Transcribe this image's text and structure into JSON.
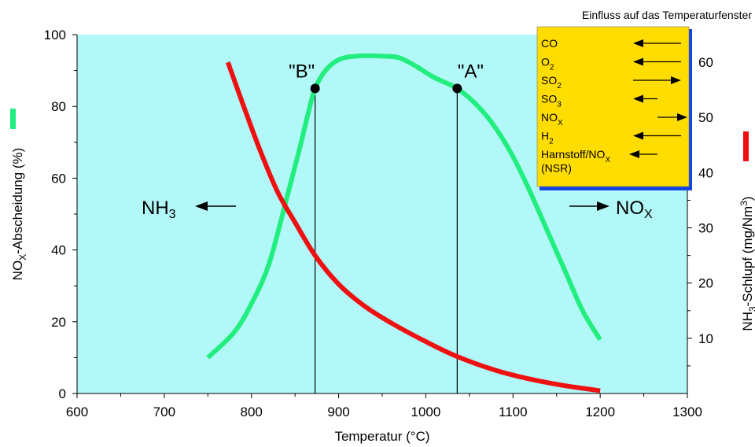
{
  "chart_data": {
    "type": "line",
    "xlabel": "Temperatur (°C)",
    "ylabel_left": {
      "base": "NO",
      "sub": "X",
      "rest": "-Abscheidung (%)"
    },
    "ylabel_right": {
      "base": "NH",
      "sub": "3",
      "rest": "-Schlupf (mg/Nm",
      "sup": "3",
      "end": ")"
    },
    "xlim": [
      600,
      1300
    ],
    "ylim_left": [
      0,
      100
    ],
    "ylim_right": [
      0,
      65
    ],
    "x_ticks": [
      600,
      700,
      800,
      900,
      1000,
      1100,
      1200,
      1300
    ],
    "y_ticks_left": [
      0,
      20,
      40,
      60,
      80,
      100
    ],
    "y_ticks_right": [
      10,
      20,
      30,
      40,
      50,
      60
    ],
    "background_color": "#b3f8f8",
    "series": [
      {
        "color": "#22ee7f",
        "axis": "left",
        "points": [
          [
            750,
            10
          ],
          [
            780,
            17
          ],
          [
            800,
            25
          ],
          [
            820,
            36
          ],
          [
            840,
            54
          ],
          [
            855,
            68
          ],
          [
            865,
            78
          ],
          [
            873,
            85
          ],
          [
            885,
            90
          ],
          [
            900,
            93
          ],
          [
            920,
            94
          ],
          [
            950,
            94
          ],
          [
            970,
            93.5
          ],
          [
            990,
            91
          ],
          [
            1010,
            88
          ],
          [
            1036,
            85
          ],
          [
            1060,
            80
          ],
          [
            1080,
            74
          ],
          [
            1100,
            66
          ],
          [
            1120,
            56
          ],
          [
            1140,
            45
          ],
          [
            1160,
            34
          ],
          [
            1180,
            23
          ],
          [
            1200,
            15
          ]
        ]
      },
      {
        "color": "#ee1111",
        "axis": "right",
        "points": [
          [
            773,
            60
          ],
          [
            790,
            52.5
          ],
          [
            810,
            44
          ],
          [
            830,
            36.5
          ],
          [
            850,
            31
          ],
          [
            873,
            25
          ],
          [
            900,
            19.8
          ],
          [
            930,
            15.8
          ],
          [
            960,
            12.8
          ],
          [
            1000,
            9.4
          ],
          [
            1036,
            6.7
          ],
          [
            1080,
            4.2
          ],
          [
            1120,
            2.6
          ],
          [
            1160,
            1.4
          ],
          [
            1200,
            0.5
          ]
        ]
      }
    ],
    "markers": [
      {
        "label": "\"B\"",
        "x": 873,
        "y": 85
      },
      {
        "label": "\"A\"",
        "x": 1036,
        "y": 85
      }
    ],
    "annotations": {
      "nh3": {
        "base": "NH",
        "sub": "3"
      },
      "nox": {
        "base": "NO",
        "sub": "X"
      }
    },
    "legend": {
      "title": "Einfluss auf das Temperaturfenster",
      "placement": "top-right",
      "background": "#ffdd00",
      "border_color": "#1144dd",
      "items": [
        {
          "base": "CO",
          "sub": "",
          "direction": "left",
          "length": "long"
        },
        {
          "base": "O",
          "sub": "2",
          "direction": "left",
          "length": "long"
        },
        {
          "base": "SO",
          "sub": "2",
          "direction": "right",
          "length": "long"
        },
        {
          "base": "SO",
          "sub": "3",
          "direction": "left",
          "length": "short"
        },
        {
          "base": "NO",
          "sub": "X",
          "direction": "right",
          "length": "short"
        },
        {
          "base": "H",
          "sub": "2",
          "direction": "left",
          "length": "long"
        },
        {
          "base": "Harnstoff/NO",
          "sub": "X",
          "direction": "left",
          "length": "medium"
        }
      ],
      "footnote": "(NSR)"
    }
  }
}
